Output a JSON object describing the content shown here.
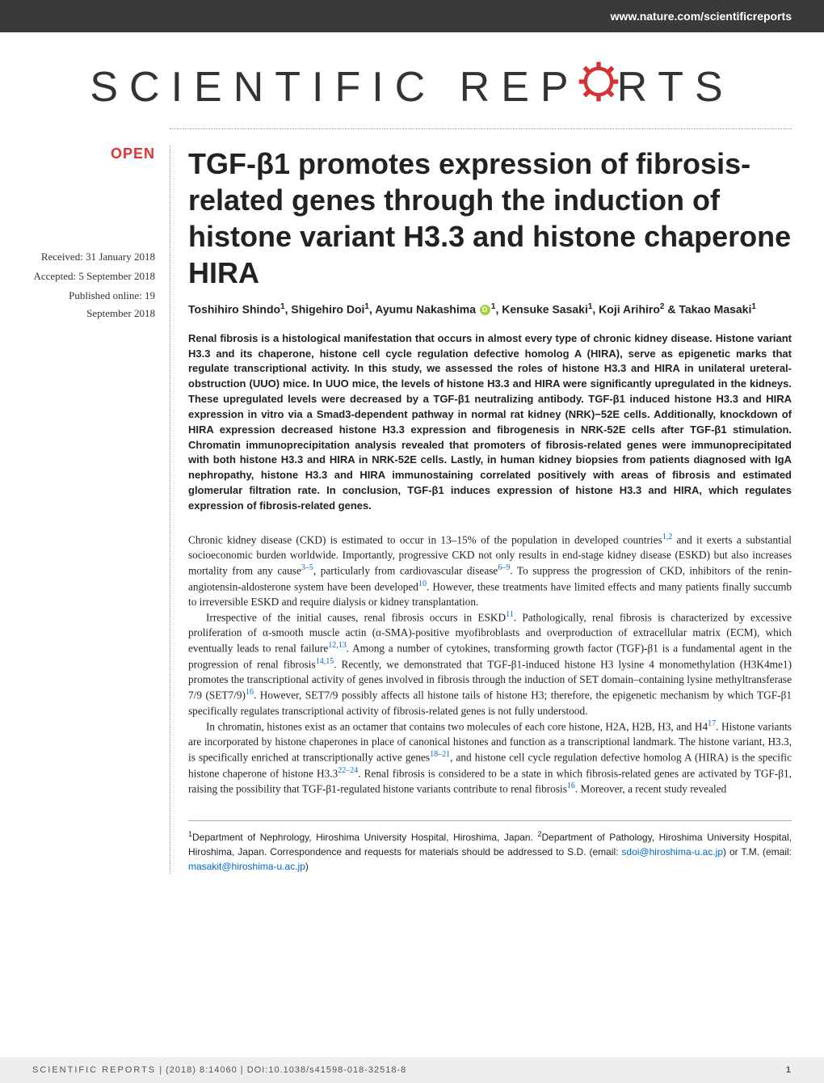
{
  "header": {
    "url": "www.nature.com/scientificreports",
    "bg_color": "#3a3a3a",
    "text_color": "#ffffff"
  },
  "logo": {
    "text_before": "SCIENTIFIC REP",
    "text_after": "RTS",
    "gear_color": "#d33333",
    "font_color": "#333333",
    "letter_spacing": 14
  },
  "badge": {
    "text": "OPEN",
    "color": "#d33333"
  },
  "dates": {
    "received": "Received: 31 January 2018",
    "accepted": "Accepted: 5 September 2018",
    "published": "Published online: 19 September 2018"
  },
  "title": "TGF-β1 promotes expression of fibrosis-related genes through the induction of histone variant H3.3 and histone chaperone HIRA",
  "authors_html": "Toshihiro Shindo<sup>1</sup>, Shigehiro Doi<sup>1</sup>, Ayumu Nakashima <span class='orcid'></span><sup>1</sup>, Kensuke Sasaki<sup>1</sup>, Koji Arihiro<sup>2</sup> & Takao Masaki<sup>1</sup>",
  "abstract": "Renal fibrosis is a histological manifestation that occurs in almost every type of chronic kidney disease. Histone variant H3.3 and its chaperone, histone cell cycle regulation defective homolog A (HIRA), serve as epigenetic marks that regulate transcriptional activity. In this study, we assessed the roles of histone H3.3 and HIRA in unilateral ureteral-obstruction (UUO) mice. In UUO mice, the levels of histone H3.3 and HIRA were significantly upregulated in the kidneys. These upregulated levels were decreased by a TGF-β1 neutralizing antibody. TGF-β1 induced histone H3.3 and HIRA expression in vitro via a Smad3-dependent pathway in normal rat kidney (NRK)−52E cells. Additionally, knockdown of HIRA expression decreased histone H3.3 expression and fibrogenesis in NRK-52E cells after TGF-β1 stimulation. Chromatin immunoprecipitation analysis revealed that promoters of fibrosis-related genes were immunoprecipitated with both histone H3.3 and HIRA in NRK-52E cells. Lastly, in human kidney biopsies from patients diagnosed with IgA nephropathy, histone H3.3 and HIRA immunostaining correlated positively with areas of fibrosis and estimated glomerular filtration rate. In conclusion, TGF-β1 induces expression of histone H3.3 and HIRA, which regulates expression of fibrosis-related genes.",
  "body": {
    "p1": "Chronic kidney disease (CKD) is estimated to occur in 13–15% of the population in developed countries",
    "p1_refs": "1,2",
    "p1_cont": " and it exerts a substantial socioeconomic burden worldwide. Importantly, progressive CKD not only results in end-stage kidney disease (ESKD) but also increases mortality from any cause",
    "p1_refs2": "3–5",
    "p1_cont2": ", particularly from cardiovascular disease",
    "p1_refs3": "6–9",
    "p1_cont3": ". To suppress the progression of CKD, inhibitors of the renin-angiotensin-aldosterone system have been developed",
    "p1_refs4": "10",
    "p1_cont4": ". However, these treatments have limited effects and many patients finally succumb to irreversible ESKD and require dialysis or kidney transplantation.",
    "p2": "Irrespective of the initial causes, renal fibrosis occurs in ESKD",
    "p2_refs": "11",
    "p2_cont": ". Pathologically, renal fibrosis is characterized by excessive proliferation of α-smooth muscle actin (α-SMA)-positive myofibroblasts and overproduction of extracellular matrix (ECM), which eventually leads to renal failure",
    "p2_refs2": "12,13",
    "p2_cont2": ". Among a number of cytokines, transforming growth factor (TGF)-β1 is a fundamental agent in the progression of renal fibrosis",
    "p2_refs3": "14,15",
    "p2_cont3": ". Recently, we demonstrated that TGF-β1-induced histone H3 lysine 4 monomethylation (H3K4me1) promotes the transcriptional activity of genes involved in fibrosis through the induction of SET domain–containing lysine methyltransferase 7/9 (SET7/9)",
    "p2_refs4": "16",
    "p2_cont4": ". However, SET7/9 possibly affects all histone tails of histone H3; therefore, the epigenetic mechanism by which TGF-β1 specifically regulates transcriptional activity of fibrosis-related genes is not fully understood.",
    "p3": "In chromatin, histones exist as an octamer that contains two molecules of each core histone, H2A, H2B, H3, and H4",
    "p3_refs": "17",
    "p3_cont": ". Histone variants are incorporated by histone chaperones in place of canonical histones and function as a transcriptional landmark. The histone variant, H3.3, is specifically enriched at transcriptionally active genes",
    "p3_refs2": "18–21",
    "p3_cont2": ", and histone cell cycle regulation defective homolog A (HIRA) is the specific histone chaperone of histone H3.3",
    "p3_refs3": "22–24",
    "p3_cont3": ". Renal fibrosis is considered to be a state in which fibrosis-related genes are activated by TGF-β1, raising the possibility that TGF-β1-regulated histone variants contribute to renal fibrosis",
    "p3_refs4": "16",
    "p3_cont4": ". Moreover, a recent study revealed"
  },
  "affiliations": "<sup>1</sup>Department of Nephrology, Hiroshima University Hospital, Hiroshima, Japan. <sup>2</sup>Department of Pathology, Hiroshima University Hospital, Hiroshima, Japan. Correspondence and requests for materials should be addressed to S.D. (email: <span class='email'>sdoi@hiroshima-u.ac.jp</span>) or T.M. (email: <span class='email'>masakit@hiroshima-u.ac.jp</span>)",
  "footer": {
    "journal": "SCIENTIFIC REPORTS",
    "citation": "| (2018) 8:14060 | DOI:10.1038/s41598-018-32518-8",
    "page": "1",
    "bg_color": "#eeeeee"
  },
  "colors": {
    "link_color": "#0066cc",
    "text_color": "#222222",
    "orcid_color": "#a6ce39"
  }
}
